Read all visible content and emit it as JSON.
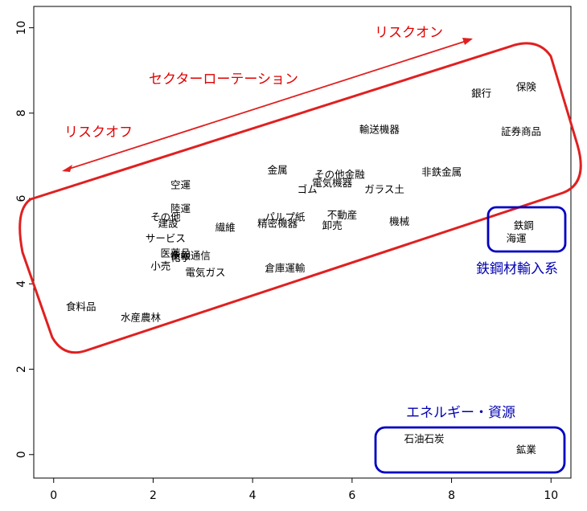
{
  "chart_data": {
    "type": "scatter",
    "title": "",
    "xlabel": "",
    "ylabel": "",
    "xlim": [
      -0.4,
      10.4
    ],
    "ylim": [
      -0.55,
      10.5
    ],
    "x_ticks": [
      0,
      2,
      4,
      6,
      8,
      10
    ],
    "y_ticks": [
      0,
      2,
      4,
      6,
      8,
      10
    ],
    "grid": false,
    "points": [
      {
        "label": "銀行",
        "x": 8.6,
        "y": 8.45
      },
      {
        "label": "保険",
        "x": 9.5,
        "y": 8.6
      },
      {
        "label": "証券商品",
        "x": 9.4,
        "y": 7.55
      },
      {
        "label": "輸送機器",
        "x": 6.55,
        "y": 7.6
      },
      {
        "label": "非鉄金属",
        "x": 7.8,
        "y": 6.6
      },
      {
        "label": "金属",
        "x": 4.5,
        "y": 6.65
      },
      {
        "label": "その他金融",
        "x": 5.75,
        "y": 6.55
      },
      {
        "label": "電気機器",
        "x": 5.6,
        "y": 6.35
      },
      {
        "label": "ゴム",
        "x": 5.1,
        "y": 6.2
      },
      {
        "label": "ガラス土",
        "x": 6.65,
        "y": 6.2
      },
      {
        "label": "空運",
        "x": 2.55,
        "y": 6.3
      },
      {
        "label": "陸運",
        "x": 2.55,
        "y": 5.75
      },
      {
        "label": "その他",
        "x": 2.25,
        "y": 5.55
      },
      {
        "label": "建設",
        "x": 2.3,
        "y": 5.4
      },
      {
        "label": "繊維",
        "x": 3.45,
        "y": 5.3
      },
      {
        "label": "パルプ紙",
        "x": 4.65,
        "y": 5.55
      },
      {
        "label": "精密機器",
        "x": 4.5,
        "y": 5.4
      },
      {
        "label": "不動産",
        "x": 5.8,
        "y": 5.6
      },
      {
        "label": "卸売",
        "x": 5.6,
        "y": 5.35
      },
      {
        "label": "機械",
        "x": 6.95,
        "y": 5.45
      },
      {
        "label": "サービス",
        "x": 2.25,
        "y": 5.05
      },
      {
        "label": "医薬品",
        "x": 2.45,
        "y": 4.7
      },
      {
        "label": "情報通信",
        "x": 2.75,
        "y": 4.65
      },
      {
        "label": "化学",
        "x": 2.55,
        "y": 4.6
      },
      {
        "label": "小売",
        "x": 2.15,
        "y": 4.4
      },
      {
        "label": "電気ガス",
        "x": 3.05,
        "y": 4.25
      },
      {
        "label": "倉庫運輸",
        "x": 4.65,
        "y": 4.35
      },
      {
        "label": "食料品",
        "x": 0.55,
        "y": 3.45
      },
      {
        "label": "水産農林",
        "x": 1.75,
        "y": 3.2
      },
      {
        "label": "鉄鋼",
        "x": 9.45,
        "y": 5.35
      },
      {
        "label": "海運",
        "x": 9.3,
        "y": 5.05
      },
      {
        "label": "石油石炭",
        "x": 7.45,
        "y": 0.35
      },
      {
        "label": "鉱業",
        "x": 9.5,
        "y": 0.1
      }
    ],
    "annotations": [
      {
        "text": "リスクオン",
        "color": "#e00000"
      },
      {
        "text": "セクターローテーション",
        "color": "#e00000"
      },
      {
        "text": "リスクオフ",
        "color": "#e00000"
      },
      {
        "text": "鉄鋼材輸入系",
        "color": "#0000b0"
      },
      {
        "text": "エネルギー・資源",
        "color": "#0000b0"
      }
    ]
  }
}
